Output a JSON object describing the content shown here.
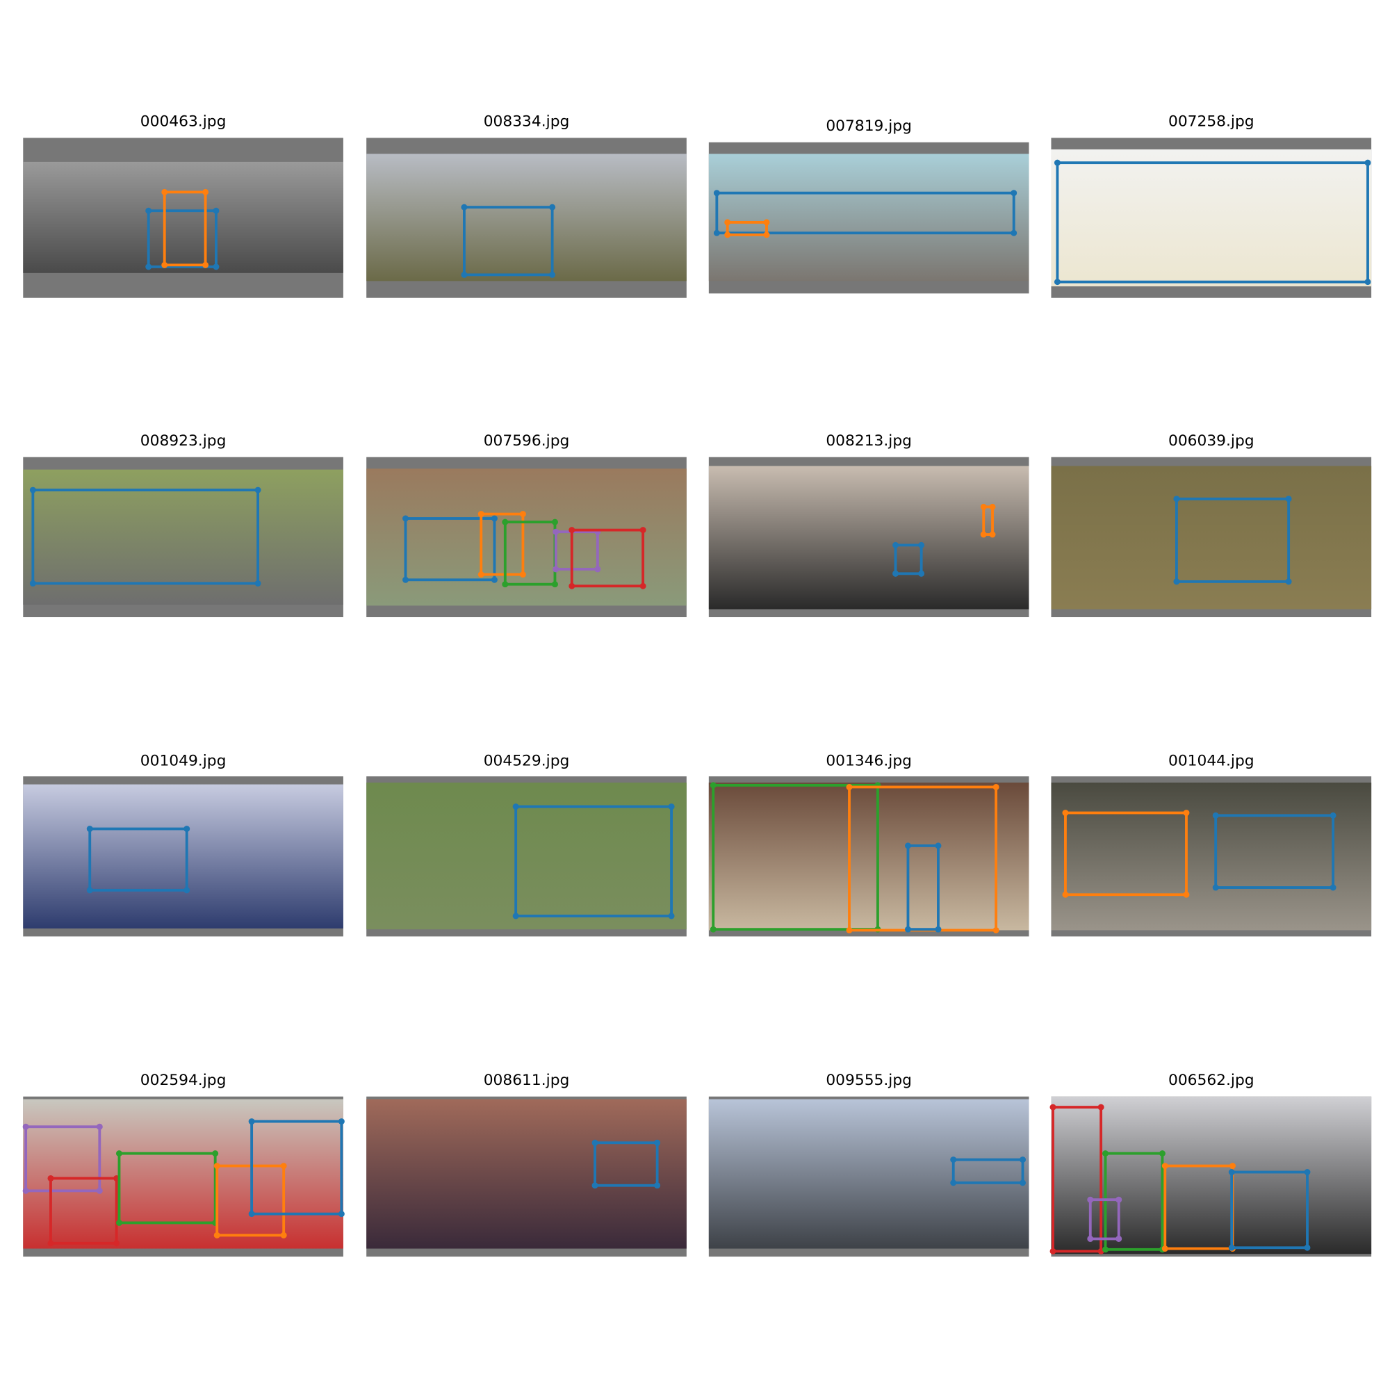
{
  "panels": [
    {
      "title": "000463.jpg"
    },
    {
      "title": "008334.jpg"
    },
    {
      "title": "007819.jpg"
    },
    {
      "title": "007258.jpg"
    },
    {
      "title": "008923.jpg"
    },
    {
      "title": "007596.jpg"
    },
    {
      "title": "008213.jpg"
    },
    {
      "title": "006039.jpg"
    },
    {
      "title": "001049.jpg"
    },
    {
      "title": "004529.jpg"
    },
    {
      "title": "001346.jpg"
    },
    {
      "title": "001044.jpg"
    },
    {
      "title": "002594.jpg"
    },
    {
      "title": "008611.jpg"
    },
    {
      "title": "009555.jpg"
    },
    {
      "title": "006562.jpg"
    }
  ]
}
